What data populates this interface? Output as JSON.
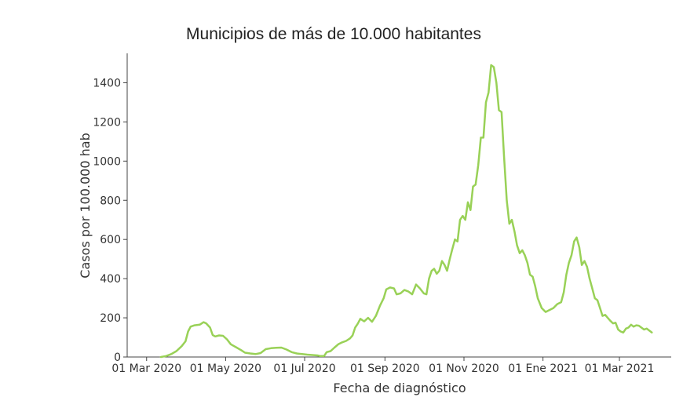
{
  "chart_data": {
    "type": "line",
    "title": "Municipios de más de 10.000 habitantes",
    "xlabel": "Fecha de diagnóstico",
    "ylabel": "Casos por 100.000 hab",
    "xlim": [
      "2020-02-15",
      "2021-04-10"
    ],
    "ylim": [
      0,
      1550
    ],
    "yticks": [
      0,
      200,
      400,
      600,
      800,
      1000,
      1200,
      1400
    ],
    "xticks": [
      {
        "date": "2020-03-01",
        "label": "01 Mar 2020"
      },
      {
        "date": "2020-05-01",
        "label": "01 May 2020"
      },
      {
        "date": "2020-07-01",
        "label": "01 Jul 2020"
      },
      {
        "date": "2020-09-01",
        "label": "01 Sep 2020"
      },
      {
        "date": "2020-11-01",
        "label": "01 Nov 2020"
      },
      {
        "date": "2021-01-01",
        "label": "01 Ene 2021"
      },
      {
        "date": "2021-03-01",
        "label": "01 Mar 2021"
      }
    ],
    "grid": false,
    "line_color": "#99d157",
    "series": [
      {
        "points": [
          [
            "2020-03-12",
            0
          ],
          [
            "2020-03-16",
            5
          ],
          [
            "2020-03-20",
            15
          ],
          [
            "2020-03-24",
            30
          ],
          [
            "2020-03-28",
            55
          ],
          [
            "2020-03-31",
            80
          ],
          [
            "2020-04-02",
            130
          ],
          [
            "2020-04-04",
            155
          ],
          [
            "2020-04-07",
            162
          ],
          [
            "2020-04-11",
            165
          ],
          [
            "2020-04-14",
            178
          ],
          [
            "2020-04-16",
            172
          ],
          [
            "2020-04-19",
            150
          ],
          [
            "2020-04-21",
            112
          ],
          [
            "2020-04-23",
            105
          ],
          [
            "2020-04-26",
            110
          ],
          [
            "2020-04-29",
            108
          ],
          [
            "2020-05-02",
            90
          ],
          [
            "2020-05-05",
            65
          ],
          [
            "2020-05-09",
            50
          ],
          [
            "2020-05-13",
            35
          ],
          [
            "2020-05-16",
            22
          ],
          [
            "2020-05-20",
            18
          ],
          [
            "2020-05-24",
            15
          ],
          [
            "2020-05-28",
            20
          ],
          [
            "2020-06-01",
            40
          ],
          [
            "2020-06-05",
            45
          ],
          [
            "2020-06-09",
            47
          ],
          [
            "2020-06-13",
            48
          ],
          [
            "2020-06-17",
            38
          ],
          [
            "2020-06-21",
            25
          ],
          [
            "2020-06-25",
            18
          ],
          [
            "2020-06-29",
            15
          ],
          [
            "2020-07-03",
            12
          ],
          [
            "2020-07-07",
            10
          ],
          [
            "2020-07-11",
            8
          ],
          [
            "2020-07-13",
            5
          ],
          [
            "2020-07-16",
            5
          ],
          [
            "2020-07-18",
            25
          ],
          [
            "2020-07-21",
            30
          ],
          [
            "2020-07-24",
            48
          ],
          [
            "2020-07-27",
            65
          ],
          [
            "2020-07-30",
            75
          ],
          [
            "2020-08-02",
            82
          ],
          [
            "2020-08-05",
            95
          ],
          [
            "2020-08-07",
            110
          ],
          [
            "2020-08-09",
            150
          ],
          [
            "2020-08-11",
            170
          ],
          [
            "2020-08-13",
            195
          ],
          [
            "2020-08-16",
            182
          ],
          [
            "2020-08-19",
            200
          ],
          [
            "2020-08-22",
            180
          ],
          [
            "2020-08-25",
            210
          ],
          [
            "2020-08-28",
            260
          ],
          [
            "2020-08-31",
            300
          ],
          [
            "2020-09-02",
            345
          ],
          [
            "2020-09-05",
            355
          ],
          [
            "2020-09-08",
            350
          ],
          [
            "2020-09-10",
            320
          ],
          [
            "2020-09-13",
            325
          ],
          [
            "2020-09-16",
            342
          ],
          [
            "2020-09-19",
            335
          ],
          [
            "2020-09-22",
            320
          ],
          [
            "2020-09-25",
            370
          ],
          [
            "2020-09-28",
            350
          ],
          [
            "2020-10-01",
            325
          ],
          [
            "2020-10-03",
            320
          ],
          [
            "2020-10-05",
            400
          ],
          [
            "2020-10-07",
            440
          ],
          [
            "2020-10-09",
            450
          ],
          [
            "2020-10-11",
            425
          ],
          [
            "2020-10-13",
            440
          ],
          [
            "2020-10-15",
            490
          ],
          [
            "2020-10-17",
            470
          ],
          [
            "2020-10-19",
            440
          ],
          [
            "2020-10-21",
            500
          ],
          [
            "2020-10-23",
            550
          ],
          [
            "2020-10-25",
            600
          ],
          [
            "2020-10-27",
            590
          ],
          [
            "2020-10-29",
            700
          ],
          [
            "2020-10-31",
            720
          ],
          [
            "2020-11-02",
            700
          ],
          [
            "2020-11-04",
            790
          ],
          [
            "2020-11-06",
            750
          ],
          [
            "2020-11-08",
            870
          ],
          [
            "2020-11-10",
            880
          ],
          [
            "2020-11-12",
            980
          ],
          [
            "2020-11-14",
            1120
          ],
          [
            "2020-11-16",
            1120
          ],
          [
            "2020-11-18",
            1300
          ],
          [
            "2020-11-20",
            1350
          ],
          [
            "2020-11-22",
            1490
          ],
          [
            "2020-11-24",
            1480
          ],
          [
            "2020-11-26",
            1400
          ],
          [
            "2020-11-28",
            1260
          ],
          [
            "2020-11-30",
            1250
          ],
          [
            "2020-12-02",
            1020
          ],
          [
            "2020-12-04",
            800
          ],
          [
            "2020-12-06",
            680
          ],
          [
            "2020-12-08",
            700
          ],
          [
            "2020-12-10",
            640
          ],
          [
            "2020-12-12",
            570
          ],
          [
            "2020-12-14",
            530
          ],
          [
            "2020-12-16",
            545
          ],
          [
            "2020-12-18",
            520
          ],
          [
            "2020-12-20",
            480
          ],
          [
            "2020-12-22",
            420
          ],
          [
            "2020-12-24",
            410
          ],
          [
            "2020-12-26",
            360
          ],
          [
            "2020-12-28",
            300
          ],
          [
            "2020-12-31",
            250
          ],
          [
            "2021-01-03",
            230
          ],
          [
            "2021-01-06",
            240
          ],
          [
            "2021-01-09",
            250
          ],
          [
            "2021-01-12",
            270
          ],
          [
            "2021-01-15",
            280
          ],
          [
            "2021-01-17",
            330
          ],
          [
            "2021-01-19",
            420
          ],
          [
            "2021-01-21",
            480
          ],
          [
            "2021-01-23",
            520
          ],
          [
            "2021-01-25",
            590
          ],
          [
            "2021-01-27",
            610
          ],
          [
            "2021-01-29",
            560
          ],
          [
            "2021-01-31",
            470
          ],
          [
            "2021-02-02",
            490
          ],
          [
            "2021-02-04",
            460
          ],
          [
            "2021-02-06",
            400
          ],
          [
            "2021-02-08",
            350
          ],
          [
            "2021-02-10",
            300
          ],
          [
            "2021-02-12",
            290
          ],
          [
            "2021-02-14",
            250
          ],
          [
            "2021-02-16",
            210
          ],
          [
            "2021-02-18",
            215
          ],
          [
            "2021-02-20",
            200
          ],
          [
            "2021-02-22",
            185
          ],
          [
            "2021-02-24",
            172
          ],
          [
            "2021-02-26",
            175
          ],
          [
            "2021-02-28",
            140
          ],
          [
            "2021-03-02",
            130
          ],
          [
            "2021-03-04",
            125
          ],
          [
            "2021-03-06",
            145
          ],
          [
            "2021-03-08",
            150
          ],
          [
            "2021-03-10",
            165
          ],
          [
            "2021-03-12",
            155
          ],
          [
            "2021-03-14",
            162
          ],
          [
            "2021-03-16",
            160
          ],
          [
            "2021-03-18",
            150
          ],
          [
            "2021-03-20",
            140
          ],
          [
            "2021-03-22",
            145
          ],
          [
            "2021-03-24",
            135
          ],
          [
            "2021-03-26",
            125
          ]
        ]
      }
    ]
  }
}
